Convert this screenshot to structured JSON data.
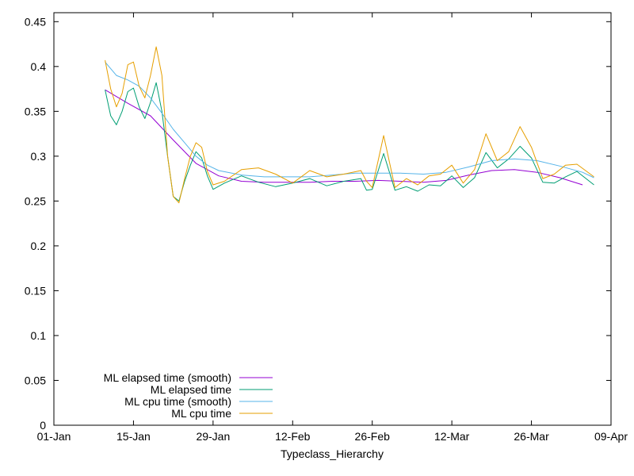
{
  "chart_data": {
    "type": "line",
    "title": "",
    "xlabel": "Typeclass_Hierarchy",
    "ylabel": "",
    "x_tick_labels": [
      "01-Jan",
      "15-Jan",
      "29-Jan",
      "12-Feb",
      "26-Feb",
      "12-Mar",
      "26-Mar",
      "09-Apr"
    ],
    "xlim": [
      "2023-01-01",
      "2023-04-09"
    ],
    "ylim": [
      0,
      0.46
    ],
    "y_ticks": [
      0,
      0.05,
      0.1,
      0.15,
      0.2,
      0.25,
      0.3,
      0.35,
      0.4,
      0.45
    ],
    "grid": false,
    "legend_position": "bottom-left",
    "series": [
      {
        "name": "ML elapsed time (smooth)",
        "color": "#9400d3",
        "x": [
          "2023-01-10",
          "2023-01-14",
          "2023-01-18",
          "2023-01-22",
          "2023-01-26",
          "2023-01-30",
          "2023-02-03",
          "2023-02-07",
          "2023-02-11",
          "2023-02-15",
          "2023-02-19",
          "2023-02-23",
          "2023-02-27",
          "2023-03-03",
          "2023-03-07",
          "2023-03-11",
          "2023-03-15",
          "2023-03-19",
          "2023-03-23",
          "2023-03-27",
          "2023-03-31",
          "2023-04-04"
        ],
        "values": [
          0.374,
          0.359,
          0.345,
          0.318,
          0.292,
          0.278,
          0.272,
          0.271,
          0.271,
          0.271,
          0.272,
          0.272,
          0.273,
          0.272,
          0.271,
          0.273,
          0.279,
          0.284,
          0.285,
          0.282,
          0.276,
          0.268
        ]
      },
      {
        "name": "ML elapsed time",
        "color": "#009e73",
        "x": [
          "2023-01-10",
          "2023-01-11",
          "2023-01-12",
          "2023-01-13",
          "2023-01-14",
          "2023-01-15",
          "2023-01-16",
          "2023-01-17",
          "2023-01-18",
          "2023-01-19",
          "2023-01-20",
          "2023-01-21",
          "2023-01-22",
          "2023-01-23",
          "2023-01-24",
          "2023-01-25",
          "2023-01-26",
          "2023-01-27",
          "2023-01-28",
          "2023-01-29",
          "2023-01-31",
          "2023-02-03",
          "2023-02-06",
          "2023-02-09",
          "2023-02-12",
          "2023-02-15",
          "2023-02-18",
          "2023-02-21",
          "2023-02-24",
          "2023-02-25",
          "2023-02-26",
          "2023-02-28",
          "2023-03-02",
          "2023-03-04",
          "2023-03-06",
          "2023-03-08",
          "2023-03-10",
          "2023-03-12",
          "2023-03-14",
          "2023-03-16",
          "2023-03-18",
          "2023-03-20",
          "2023-03-22",
          "2023-03-24",
          "2023-03-26",
          "2023-03-28",
          "2023-03-30",
          "2023-04-01",
          "2023-04-03",
          "2023-04-06"
        ],
        "values": [
          0.374,
          0.345,
          0.335,
          0.35,
          0.372,
          0.376,
          0.355,
          0.342,
          0.36,
          0.382,
          0.35,
          0.3,
          0.255,
          0.25,
          0.272,
          0.29,
          0.305,
          0.298,
          0.278,
          0.263,
          0.27,
          0.278,
          0.271,
          0.266,
          0.27,
          0.275,
          0.267,
          0.272,
          0.275,
          0.262,
          0.263,
          0.303,
          0.262,
          0.266,
          0.261,
          0.268,
          0.267,
          0.278,
          0.265,
          0.276,
          0.304,
          0.287,
          0.297,
          0.311,
          0.298,
          0.271,
          0.27,
          0.277,
          0.283,
          0.268
        ]
      },
      {
        "name": "ML cpu time (smooth)",
        "color": "#56b4e9",
        "x": [
          "2023-01-10",
          "2023-01-12",
          "2023-01-14",
          "2023-01-16",
          "2023-01-18",
          "2023-01-20",
          "2023-01-22",
          "2023-01-24",
          "2023-01-26",
          "2023-01-28",
          "2023-01-30",
          "2023-02-03",
          "2023-02-07",
          "2023-02-11",
          "2023-02-15",
          "2023-02-19",
          "2023-02-23",
          "2023-02-27",
          "2023-03-03",
          "2023-03-07",
          "2023-03-11",
          "2023-03-15",
          "2023-03-19",
          "2023-03-23",
          "2023-03-27",
          "2023-03-31",
          "2023-04-04",
          "2023-04-06"
        ],
        "values": [
          0.405,
          0.39,
          0.385,
          0.378,
          0.365,
          0.348,
          0.33,
          0.315,
          0.3,
          0.29,
          0.284,
          0.279,
          0.277,
          0.277,
          0.277,
          0.279,
          0.281,
          0.281,
          0.281,
          0.28,
          0.282,
          0.288,
          0.295,
          0.297,
          0.295,
          0.289,
          0.282,
          0.276
        ]
      },
      {
        "name": "ML cpu time",
        "color": "#e69f00",
        "x": [
          "2023-01-10",
          "2023-01-11",
          "2023-01-12",
          "2023-01-13",
          "2023-01-14",
          "2023-01-15",
          "2023-01-16",
          "2023-01-17",
          "2023-01-18",
          "2023-01-19",
          "2023-01-20",
          "2023-01-21",
          "2023-01-22",
          "2023-01-23",
          "2023-01-24",
          "2023-01-25",
          "2023-01-26",
          "2023-01-27",
          "2023-01-28",
          "2023-01-29",
          "2023-01-31",
          "2023-02-03",
          "2023-02-06",
          "2023-02-09",
          "2023-02-12",
          "2023-02-15",
          "2023-02-18",
          "2023-02-21",
          "2023-02-24",
          "2023-02-25",
          "2023-02-26",
          "2023-02-28",
          "2023-03-02",
          "2023-03-04",
          "2023-03-06",
          "2023-03-08",
          "2023-03-10",
          "2023-03-12",
          "2023-03-14",
          "2023-03-16",
          "2023-03-18",
          "2023-03-20",
          "2023-03-22",
          "2023-03-24",
          "2023-03-26",
          "2023-03-28",
          "2023-03-30",
          "2023-04-01",
          "2023-04-03",
          "2023-04-06"
        ],
        "values": [
          0.407,
          0.375,
          0.355,
          0.37,
          0.402,
          0.405,
          0.378,
          0.365,
          0.39,
          0.422,
          0.39,
          0.3,
          0.255,
          0.248,
          0.275,
          0.3,
          0.315,
          0.31,
          0.283,
          0.268,
          0.272,
          0.285,
          0.287,
          0.28,
          0.27,
          0.284,
          0.277,
          0.28,
          0.284,
          0.272,
          0.265,
          0.323,
          0.265,
          0.275,
          0.268,
          0.278,
          0.28,
          0.29,
          0.27,
          0.285,
          0.325,
          0.295,
          0.305,
          0.333,
          0.31,
          0.275,
          0.28,
          0.29,
          0.291,
          0.277
        ]
      }
    ]
  }
}
